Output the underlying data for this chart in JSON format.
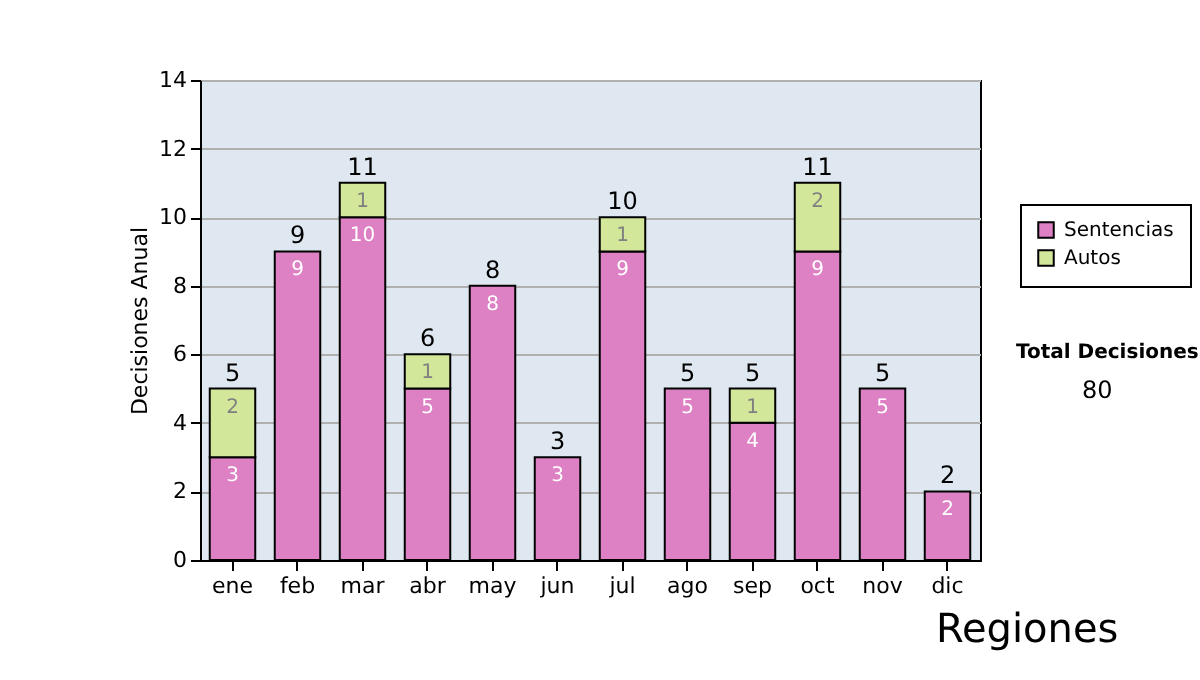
{
  "chart_data": {
    "type": "bar",
    "stacked": true,
    "ylabel": "Decisiones Anual",
    "categories": [
      "ene",
      "feb",
      "mar",
      "abr",
      "may",
      "jun",
      "jul",
      "ago",
      "sep",
      "oct",
      "nov",
      "dic"
    ],
    "series": [
      {
        "name": "Sentencias",
        "color": "#dd80c4",
        "values": [
          3,
          9,
          10,
          5,
          8,
          3,
          9,
          5,
          4,
          9,
          5,
          2
        ]
      },
      {
        "name": "Autos",
        "color": "#d3e79a",
        "values": [
          2,
          null,
          1,
          1,
          null,
          null,
          1,
          null,
          1,
          2,
          null,
          null
        ]
      }
    ],
    "totals": [
      "5",
      "9",
      "11",
      "6",
      "8",
      "3",
      "10",
      "5",
      "5",
      "11",
      "5",
      "2"
    ],
    "data_labels": true,
    "ylim": [
      0,
      14
    ],
    "yticks": [
      0,
      2,
      4,
      6,
      8,
      10,
      12,
      14
    ],
    "grid": "y",
    "legend": "right",
    "annotations": [
      "Total Decisiones",
      "80",
      "Regiones"
    ]
  }
}
